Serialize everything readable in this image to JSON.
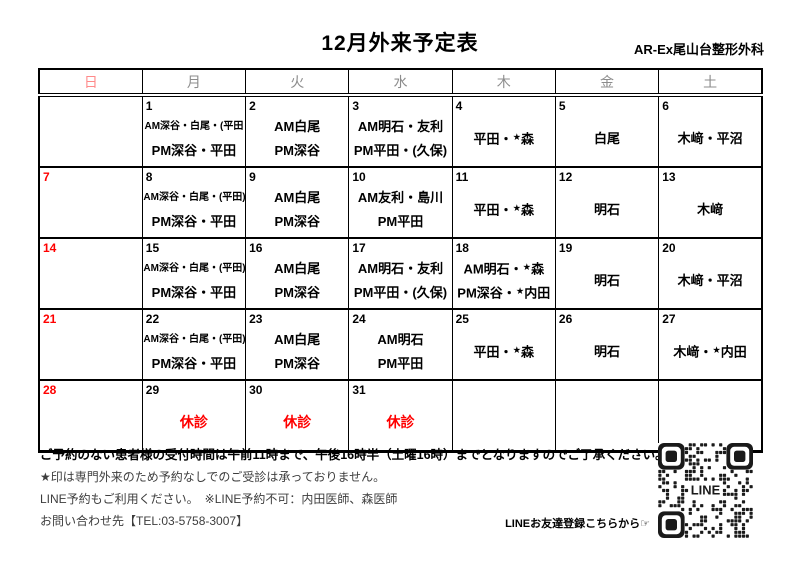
{
  "page": {
    "title": "12月外来予定表",
    "clinic_name": "AR-Ex尾山台整形外科"
  },
  "colors": {
    "red": "#ff0000",
    "sunday_header": "#ff8a8a",
    "weekday_header": "#8c8c8c"
  },
  "calendar": {
    "weekday_headers": [
      "日",
      "月",
      "火",
      "水",
      "木",
      "金",
      "土"
    ],
    "weeks": [
      [
        {
          "date": "",
          "red": false,
          "lines": []
        },
        {
          "date": "1",
          "red": false,
          "lines": [
            {
              "t": "AM深谷・白尾・(平田",
              "small": true
            },
            {
              "t": "PM深谷・平田"
            }
          ]
        },
        {
          "date": "2",
          "red": false,
          "lines": [
            {
              "t": "AM白尾"
            },
            {
              "t": "PM深谷"
            }
          ]
        },
        {
          "date": "3",
          "red": false,
          "lines": [
            {
              "t": "AM明石・友利"
            },
            {
              "t": "PM平田・(久保)"
            }
          ]
        },
        {
          "date": "4",
          "red": false,
          "lines": [
            {
              "t": "平田・★森"
            }
          ]
        },
        {
          "date": "5",
          "red": false,
          "lines": [
            {
              "t": "白尾"
            }
          ]
        },
        {
          "date": "6",
          "red": false,
          "lines": [
            {
              "t": "木﨑・平沼"
            }
          ]
        }
      ],
      [
        {
          "date": "7",
          "red": true,
          "lines": []
        },
        {
          "date": "8",
          "red": false,
          "lines": [
            {
              "t": "AM深谷・白尾・(平田)",
              "small": true
            },
            {
              "t": "PM深谷・平田"
            }
          ]
        },
        {
          "date": "9",
          "red": false,
          "lines": [
            {
              "t": "AM白尾"
            },
            {
              "t": "PM深谷"
            }
          ]
        },
        {
          "date": "10",
          "red": false,
          "lines": [
            {
              "t": "AM友利・島川"
            },
            {
              "t": "PM平田"
            }
          ]
        },
        {
          "date": "11",
          "red": false,
          "lines": [
            {
              "t": "平田・★森"
            }
          ]
        },
        {
          "date": "12",
          "red": false,
          "lines": [
            {
              "t": "明石"
            }
          ]
        },
        {
          "date": "13",
          "red": false,
          "lines": [
            {
              "t": "木﨑"
            }
          ]
        }
      ],
      [
        {
          "date": "14",
          "red": true,
          "lines": []
        },
        {
          "date": "15",
          "red": false,
          "lines": [
            {
              "t": "AM深谷・白尾・(平田)",
              "small": true
            },
            {
              "t": "PM深谷・平田"
            }
          ]
        },
        {
          "date": "16",
          "red": false,
          "lines": [
            {
              "t": "AM白尾"
            },
            {
              "t": "PM深谷"
            }
          ]
        },
        {
          "date": "17",
          "red": false,
          "lines": [
            {
              "t": "AM明石・友利"
            },
            {
              "t": "PM平田・(久保)"
            }
          ]
        },
        {
          "date": "18",
          "red": false,
          "lines": [
            {
              "t": "AM明石・★森"
            },
            {
              "t": "PM深谷・★内田"
            }
          ]
        },
        {
          "date": "19",
          "red": false,
          "lines": [
            {
              "t": "明石"
            }
          ]
        },
        {
          "date": "20",
          "red": false,
          "lines": [
            {
              "t": "木﨑・平沼"
            }
          ]
        }
      ],
      [
        {
          "date": "21",
          "red": true,
          "lines": []
        },
        {
          "date": "22",
          "red": false,
          "lines": [
            {
              "t": "AM深谷・白尾・(平田)",
              "small": true
            },
            {
              "t": "PM深谷・平田"
            }
          ]
        },
        {
          "date": "23",
          "red": false,
          "lines": [
            {
              "t": "AM白尾"
            },
            {
              "t": "PM深谷"
            }
          ]
        },
        {
          "date": "24",
          "red": false,
          "lines": [
            {
              "t": "AM明石"
            },
            {
              "t": "PM平田"
            }
          ]
        },
        {
          "date": "25",
          "red": false,
          "lines": [
            {
              "t": "平田・★森"
            }
          ]
        },
        {
          "date": "26",
          "red": false,
          "lines": [
            {
              "t": "明石"
            }
          ]
        },
        {
          "date": "27",
          "red": false,
          "lines": [
            {
              "t": "木﨑・★内田"
            }
          ]
        }
      ],
      [
        {
          "date": "28",
          "red": true,
          "lines": []
        },
        {
          "date": "29",
          "red": false,
          "lines": [
            {
              "t": "休診",
              "closed": true
            }
          ]
        },
        {
          "date": "30",
          "red": false,
          "lines": [
            {
              "t": "休診",
              "closed": true
            }
          ]
        },
        {
          "date": "31",
          "red": false,
          "lines": [
            {
              "t": "休診",
              "closed": true
            }
          ]
        },
        {
          "date": "",
          "red": false,
          "lines": []
        },
        {
          "date": "",
          "red": false,
          "lines": []
        },
        {
          "date": "",
          "red": false,
          "lines": []
        }
      ]
    ]
  },
  "notes": {
    "reception": "ご予約のない患者様の受付時間は午前11時まで、午後16時半（土曜16時）までとなりますのでご了承ください。",
    "star_note": "★印は専門外来のため予約なしでのご受診は承っておりません。",
    "line_booking": "LINE予約もご利用ください。　※LINE予約不可：内田医師、森医師",
    "contact": "お問い合わせ先【TEL:03-5758-3007】"
  },
  "qr": {
    "label": "LINE",
    "caption": "LINEお友達登録こちらから☞"
  }
}
